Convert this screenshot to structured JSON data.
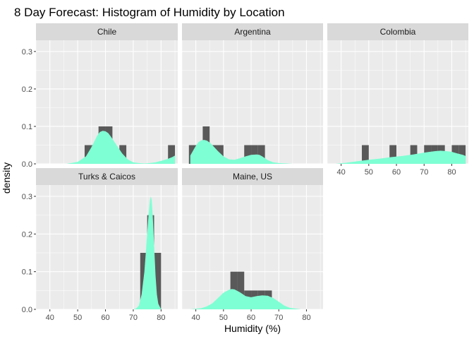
{
  "chart_data": {
    "type": "histogram",
    "title": "8 Day Forecast: Histogram of Humidity by Location",
    "xlabel": "Humidity (%)",
    "ylabel": "density",
    "xlim": [
      35,
      86
    ],
    "ylim": [
      0,
      0.33
    ],
    "x_ticks": [
      40,
      50,
      60,
      70,
      80
    ],
    "y_ticks": [
      0.0,
      0.1,
      0.2,
      0.3
    ],
    "y_tick_labels": [
      "0.0",
      "0.1",
      "0.2",
      "0.3"
    ],
    "bin_width": 2.5,
    "colors": {
      "panel_bg": "#ebebeb",
      "strip_bg": "#d9d9d9",
      "grid": "#ffffff",
      "bar": "#595959",
      "density_fill": "#7fffd4",
      "tick": "#333333"
    },
    "panels": [
      {
        "name": "Chile",
        "bars": [
          {
            "x0": 52.5,
            "x1": 55.0,
            "y": 0.05
          },
          {
            "x0": 55.0,
            "x1": 57.5,
            "y": 0.05
          },
          {
            "x0": 57.5,
            "x1": 60.0,
            "y": 0.1
          },
          {
            "x0": 60.0,
            "x1": 62.5,
            "y": 0.1
          },
          {
            "x0": 65.0,
            "x1": 67.5,
            "y": 0.05
          },
          {
            "x0": 82.5,
            "x1": 85.0,
            "y": 0.05
          }
        ],
        "density": {
          "x": [
            39,
            46,
            50,
            53,
            55,
            57,
            58,
            59,
            60,
            61,
            62,
            64,
            66,
            68,
            70,
            72,
            74,
            76,
            78,
            80,
            82,
            84,
            85
          ],
          "y": [
            0.0,
            0.0,
            0.005,
            0.02,
            0.045,
            0.075,
            0.085,
            0.088,
            0.087,
            0.082,
            0.072,
            0.05,
            0.028,
            0.012,
            0.004,
            0.002,
            0.001,
            0.002,
            0.004,
            0.008,
            0.012,
            0.018,
            0.022
          ]
        }
      },
      {
        "name": "Argentina",
        "bars": [
          {
            "x0": 37.5,
            "x1": 40.0,
            "y": 0.05
          },
          {
            "x0": 40.0,
            "x1": 42.5,
            "y": 0.05
          },
          {
            "x0": 42.5,
            "x1": 45.0,
            "y": 0.1
          },
          {
            "x0": 45.0,
            "x1": 47.5,
            "y": 0.05
          },
          {
            "x0": 47.5,
            "x1": 50.0,
            "y": 0.05
          },
          {
            "x0": 57.5,
            "x1": 60.0,
            "y": 0.05
          },
          {
            "x0": 60.0,
            "x1": 62.5,
            "y": 0.05
          },
          {
            "x0": 62.5,
            "x1": 65.0,
            "y": 0.05
          }
        ],
        "density": {
          "x": [
            38,
            39,
            40,
            41,
            42,
            43,
            44,
            45,
            46,
            48,
            50,
            52,
            54,
            56,
            58,
            60,
            62,
            63,
            64,
            66,
            68,
            70,
            75,
            80,
            85
          ],
          "y": [
            0.022,
            0.035,
            0.048,
            0.058,
            0.063,
            0.064,
            0.062,
            0.057,
            0.05,
            0.034,
            0.02,
            0.012,
            0.011,
            0.015,
            0.02,
            0.024,
            0.025,
            0.024,
            0.02,
            0.01,
            0.004,
            0.002,
            0.0,
            0.0,
            0.0
          ]
        }
      },
      {
        "name": "Colombia",
        "bars": [
          {
            "x0": 47.5,
            "x1": 50.0,
            "y": 0.05
          },
          {
            "x0": 57.5,
            "x1": 60.0,
            "y": 0.05
          },
          {
            "x0": 65.0,
            "x1": 67.5,
            "y": 0.05
          },
          {
            "x0": 70.0,
            "x1": 72.5,
            "y": 0.05
          },
          {
            "x0": 72.5,
            "x1": 75.0,
            "y": 0.05
          },
          {
            "x0": 75.0,
            "x1": 77.5,
            "y": 0.05
          },
          {
            "x0": 80.0,
            "x1": 82.5,
            "y": 0.05
          },
          {
            "x0": 82.5,
            "x1": 85.0,
            "y": 0.05
          }
        ],
        "density": {
          "x": [
            38,
            42,
            46,
            50,
            54,
            58,
            62,
            66,
            70,
            72,
            74,
            76,
            78,
            80,
            82,
            84,
            85
          ],
          "y": [
            0.0,
            0.003,
            0.007,
            0.011,
            0.014,
            0.018,
            0.021,
            0.025,
            0.03,
            0.032,
            0.034,
            0.035,
            0.034,
            0.032,
            0.028,
            0.024,
            0.021
          ]
        }
      },
      {
        "name": "Turks & Caicos",
        "bars": [
          {
            "x0": 72.5,
            "x1": 75.0,
            "y": 0.15
          },
          {
            "x0": 75.0,
            "x1": 77.5,
            "y": 0.25
          },
          {
            "x0": 77.5,
            "x1": 80.0,
            "y": 0.15
          }
        ],
        "density": {
          "x": [
            38,
            60,
            70,
            71,
            72,
            73,
            74,
            74.5,
            75,
            75.5,
            76,
            76.3,
            76.6,
            77,
            77.5,
            78,
            78.5,
            79,
            80,
            85
          ],
          "y": [
            0.0,
            0.0,
            0.0,
            0.002,
            0.01,
            0.04,
            0.1,
            0.15,
            0.2,
            0.25,
            0.29,
            0.3,
            0.29,
            0.25,
            0.17,
            0.09,
            0.04,
            0.015,
            0.0,
            0.0
          ]
        }
      },
      {
        "name": "Maine, US",
        "bars": [
          {
            "x0": 52.5,
            "x1": 55.0,
            "y": 0.1
          },
          {
            "x0": 55.0,
            "x1": 57.5,
            "y": 0.1
          },
          {
            "x0": 57.5,
            "x1": 60.0,
            "y": 0.05
          },
          {
            "x0": 60.0,
            "x1": 62.5,
            "y": 0.05
          },
          {
            "x0": 62.5,
            "x1": 65.0,
            "y": 0.05
          },
          {
            "x0": 65.0,
            "x1": 67.5,
            "y": 0.05
          }
        ],
        "density": {
          "x": [
            38,
            42,
            44,
            46,
            48,
            50,
            52,
            53,
            54,
            56,
            58,
            60,
            62,
            64,
            66,
            68,
            70,
            72,
            74,
            78,
            85
          ],
          "y": [
            0.0,
            0.003,
            0.008,
            0.016,
            0.03,
            0.044,
            0.052,
            0.054,
            0.053,
            0.045,
            0.035,
            0.032,
            0.035,
            0.037,
            0.036,
            0.03,
            0.02,
            0.01,
            0.004,
            0.0,
            0.0
          ]
        }
      }
    ]
  }
}
